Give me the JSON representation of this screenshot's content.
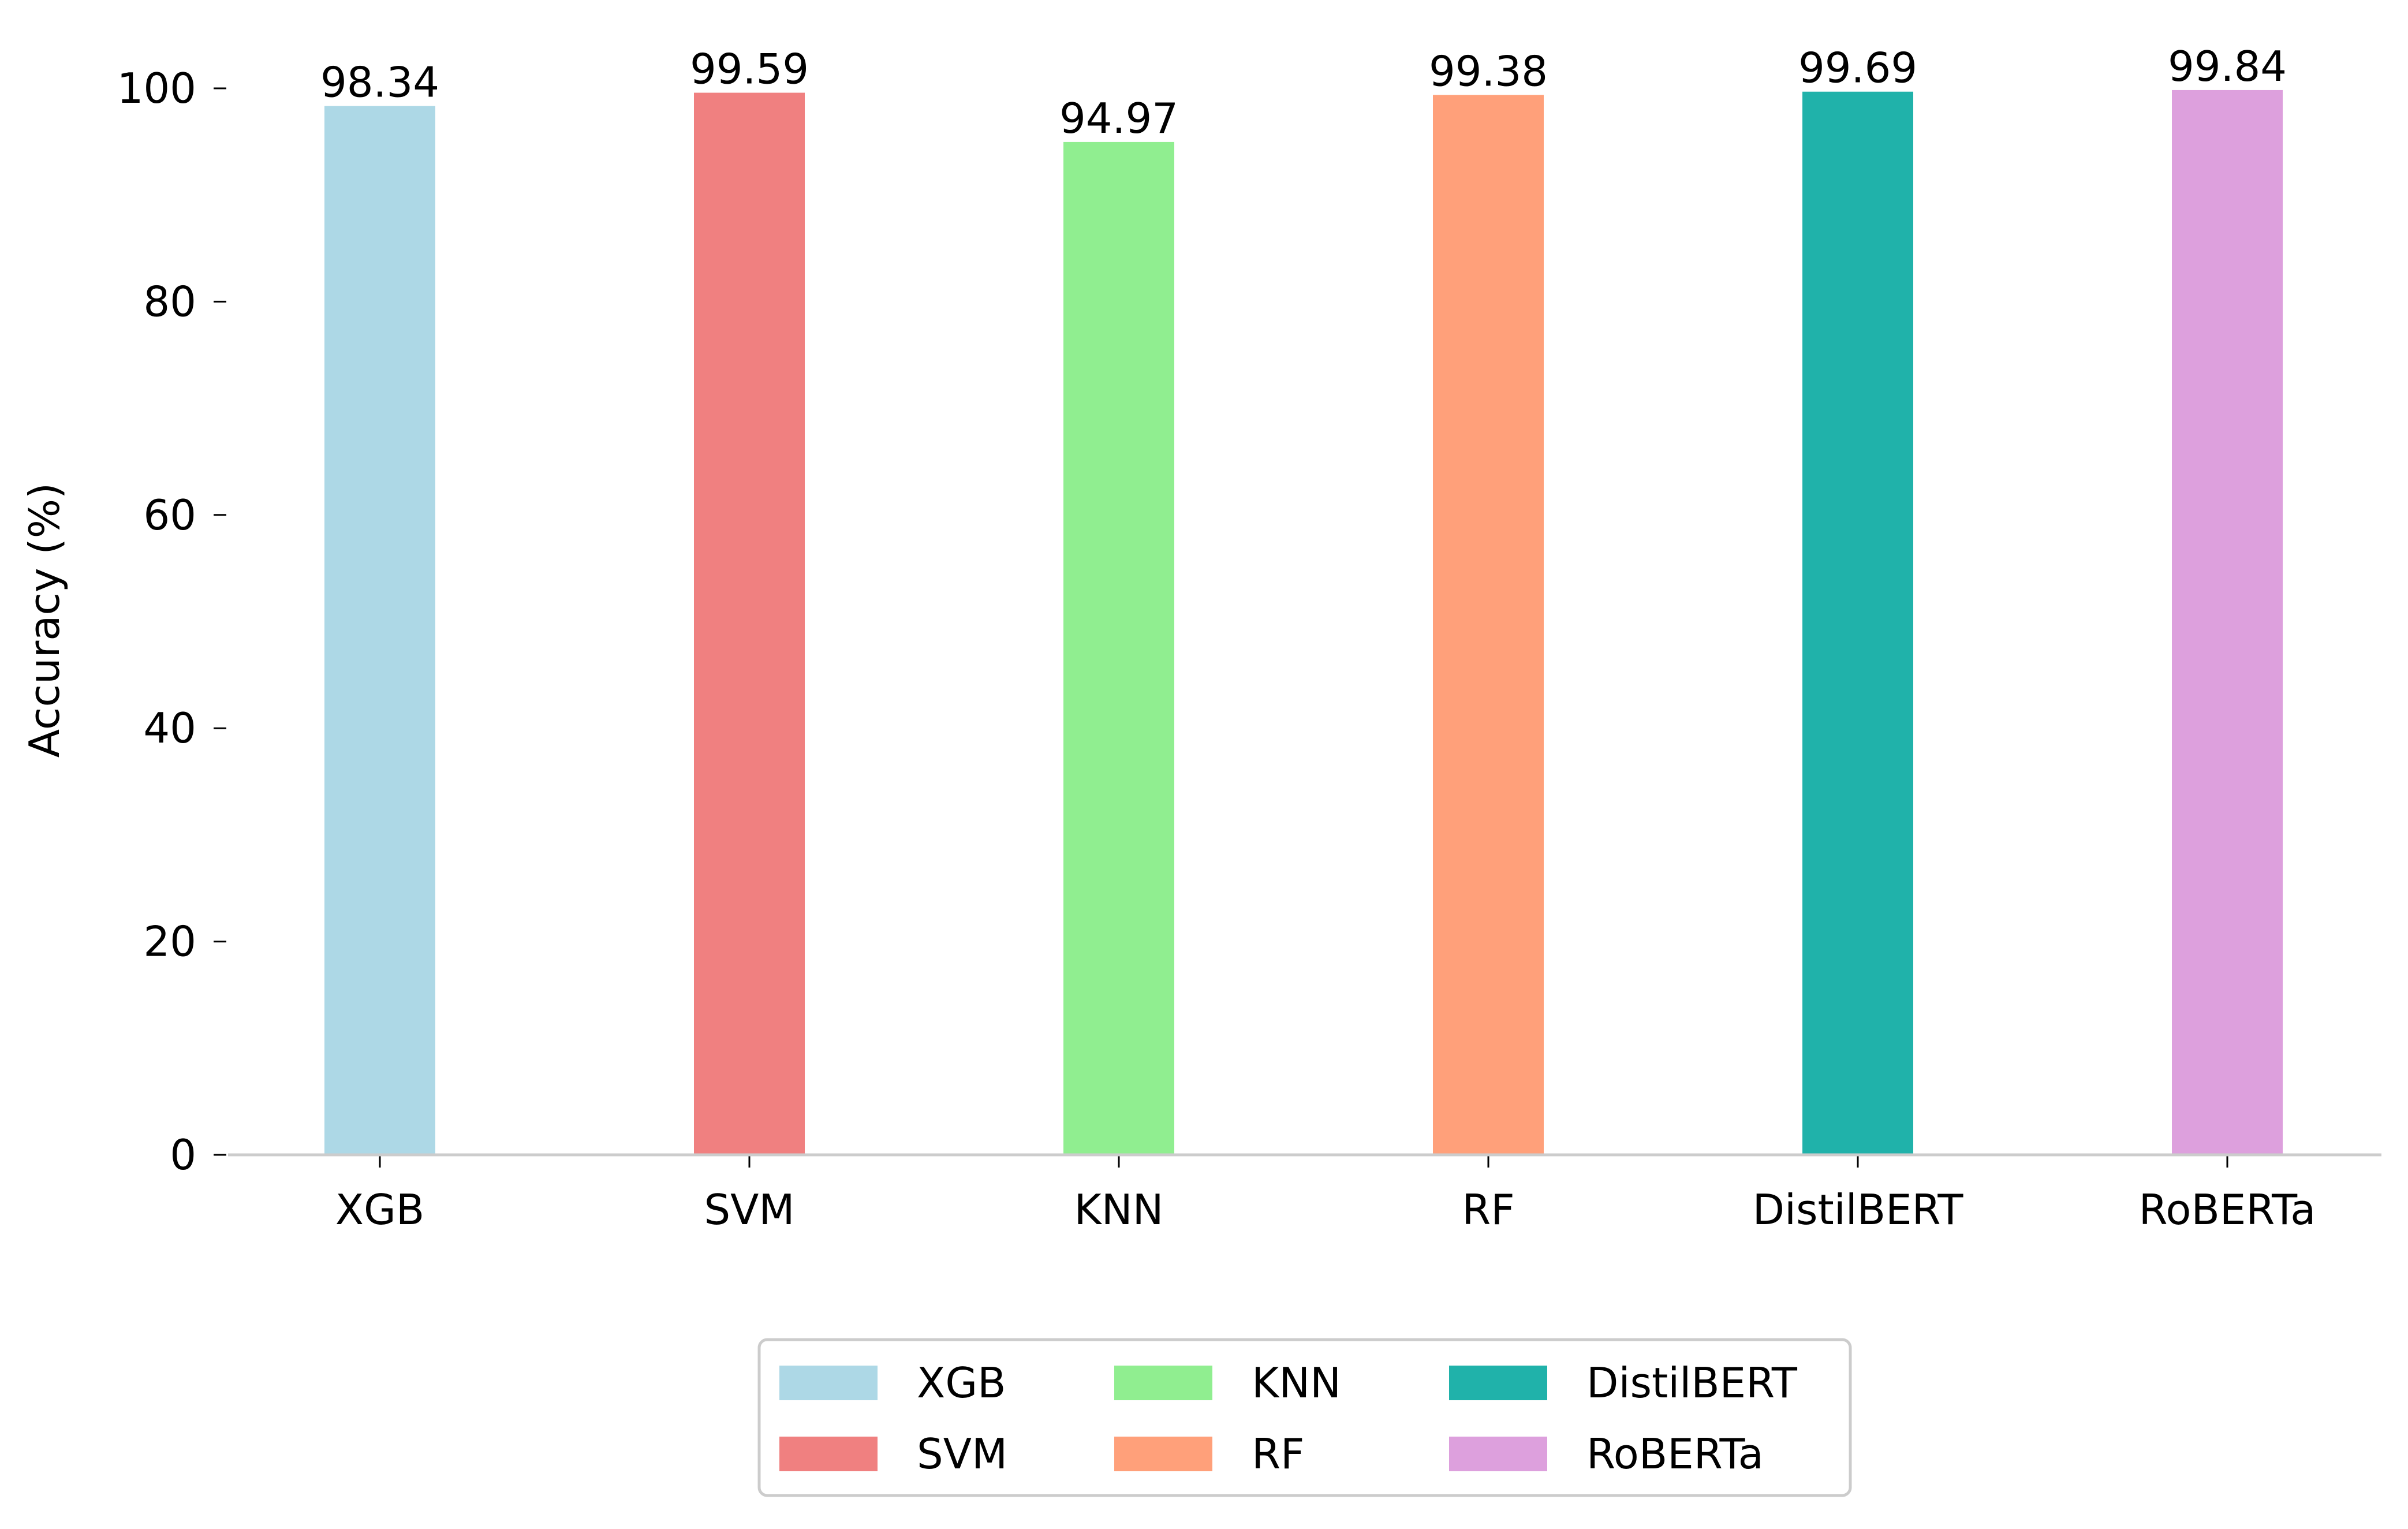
{
  "chart_data": {
    "type": "bar",
    "title": "",
    "xlabel": "",
    "ylabel": "Accuracy (%)",
    "categories": [
      "XGB",
      "SVM",
      "KNN",
      "RF",
      "DistilBERT",
      "RoBERTa"
    ],
    "values": [
      98.34,
      99.59,
      94.97,
      99.38,
      99.69,
      99.84
    ],
    "value_labels": [
      "98.34",
      "99.59",
      "94.97",
      "99.38",
      "99.69",
      "99.84"
    ],
    "colors": [
      "#add8e6",
      "#f08080",
      "#90ee90",
      "#ffa07a",
      "#20b2aa",
      "#dda0dd"
    ],
    "ylim": [
      0,
      100
    ],
    "yticks": [
      0,
      20,
      40,
      60,
      80,
      100
    ],
    "ytick_labels": [
      "0",
      "20",
      "40",
      "60",
      "80",
      "100"
    ],
    "grid": false,
    "legend_placement": "bottom-center",
    "legend_columns": 3,
    "axis_color": "#cccccc"
  }
}
